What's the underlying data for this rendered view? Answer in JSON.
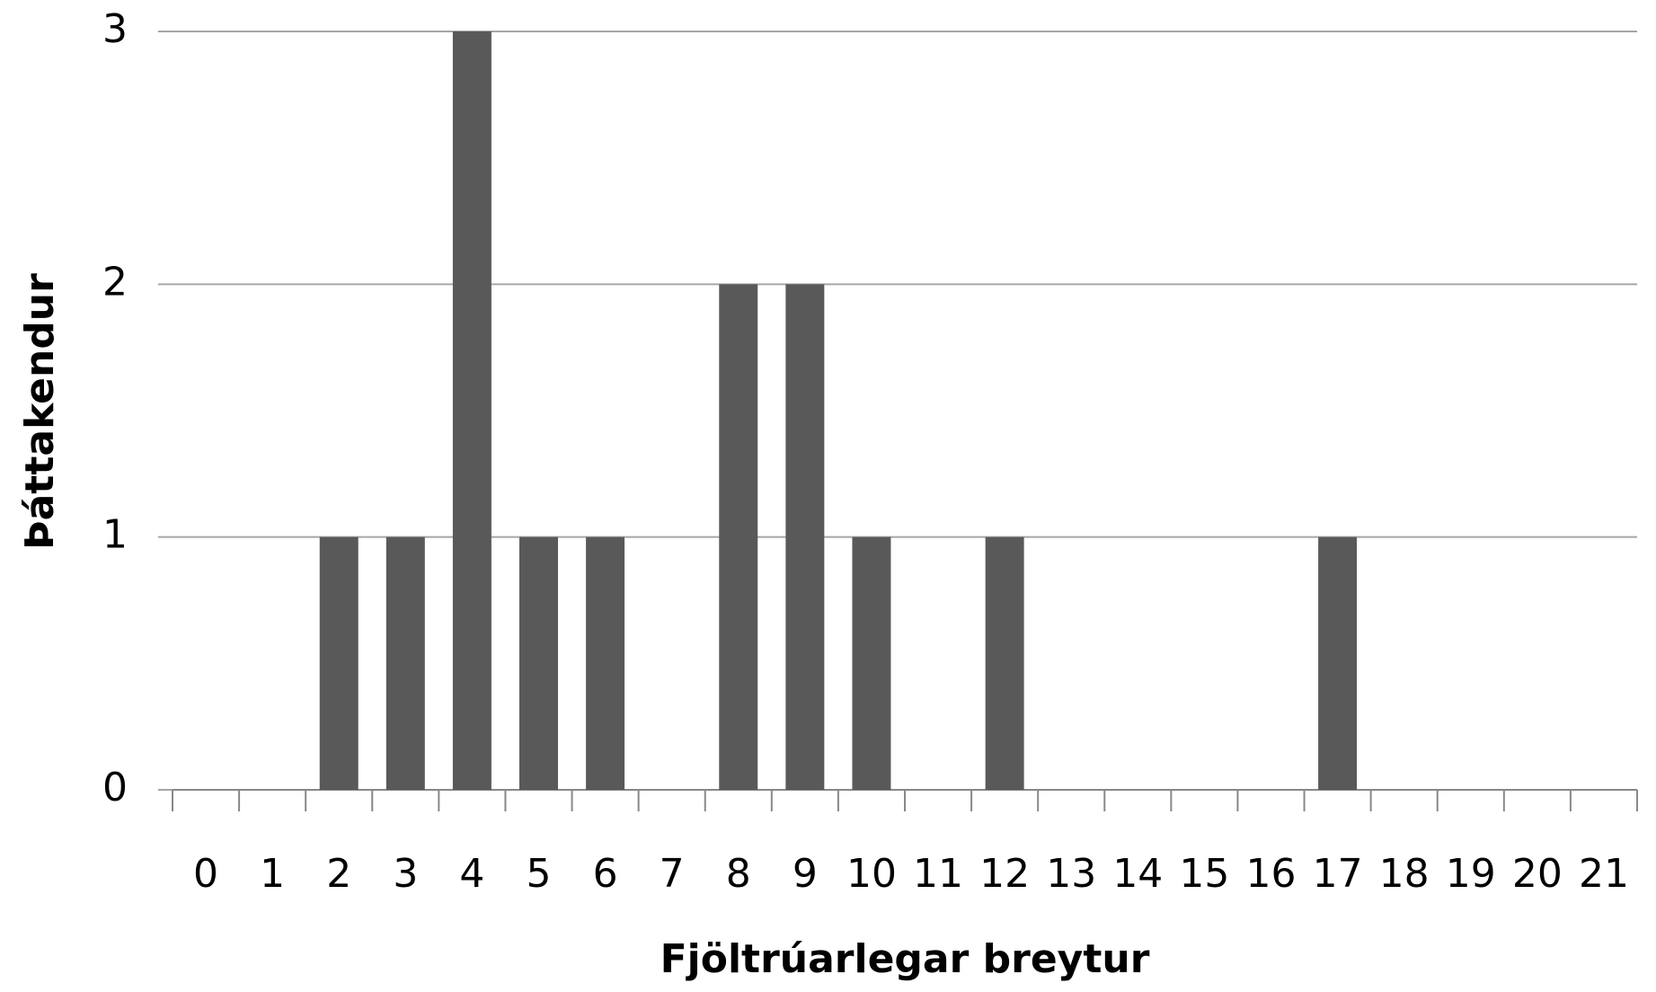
{
  "chart_data": {
    "type": "bar",
    "x_label": "Fjöltrúarlegar breytur",
    "y_label": "Þáttakendur",
    "categories": [
      "0",
      "1",
      "2",
      "3",
      "4",
      "5",
      "6",
      "7",
      "8",
      "9",
      "10",
      "11",
      "12",
      "13",
      "14",
      "15",
      "16",
      "17",
      "18",
      "19",
      "20",
      "21"
    ],
    "values": [
      0,
      0,
      1,
      1,
      3,
      1,
      1,
      0,
      2,
      2,
      1,
      0,
      1,
      0,
      0,
      0,
      0,
      1,
      0,
      0,
      0,
      0
    ],
    "color": "#595959",
    "ylim": [
      0,
      3
    ],
    "yticks": [
      0,
      1,
      2,
      3
    ],
    "grid": true
  }
}
